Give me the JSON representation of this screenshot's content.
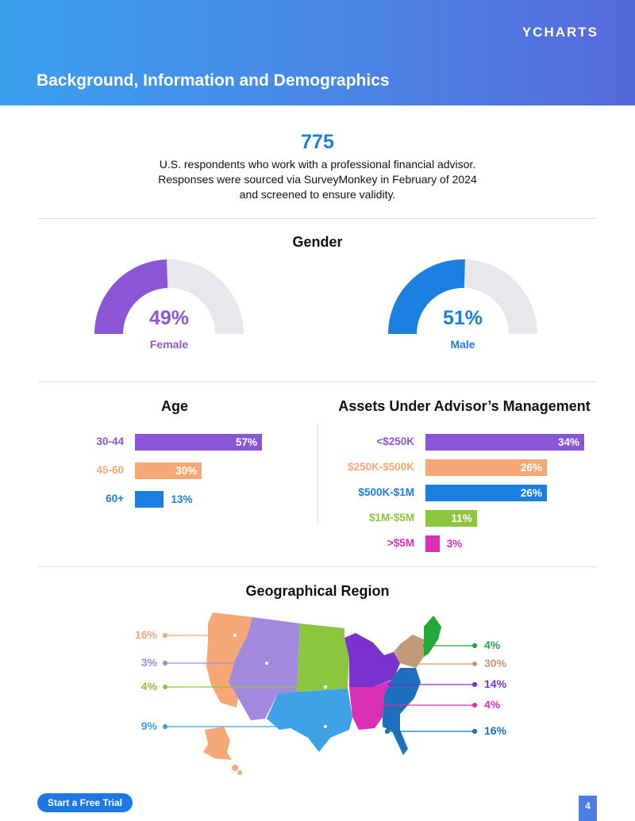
{
  "header": {
    "brand": "YCHARTS",
    "title": "Background, Information and Demographics"
  },
  "intro": {
    "count": "775",
    "lines": [
      "U.S. respondents who work with a professional financial advisor.",
      "Responses were sourced via SurveyMonkey in February of 2024",
      "and screened to ensure validity."
    ]
  },
  "colors": {
    "purple": "#8a56d6",
    "orange": "#f7a877",
    "blue": "#1b7fe0",
    "green": "#8cc63f",
    "magenta": "#d92fb4",
    "gauge_track": "#e8e8ec"
  },
  "cta_label": "Start a Free Trial",
  "page_number": "4",
  "chart_data": [
    {
      "type": "gauge",
      "title": "Gender",
      "series": [
        {
          "name": "Female",
          "value": 49,
          "label": "49%",
          "color": "#8a56d6"
        },
        {
          "name": "Male",
          "value": 51,
          "label": "51%",
          "color": "#1b7fe0"
        }
      ]
    },
    {
      "type": "bar",
      "orientation": "horizontal",
      "title": "Age",
      "categories": [
        "30-44",
        "45-60",
        "60+"
      ],
      "values": [
        57,
        30,
        13
      ],
      "labels": [
        "57%",
        "30%",
        "13%"
      ],
      "colors": [
        "#8a56d6",
        "#f7a877",
        "#1b7fe0"
      ],
      "xlim": [
        0,
        57
      ]
    },
    {
      "type": "bar",
      "orientation": "horizontal",
      "title": "Assets Under Advisor’s Management",
      "categories": [
        "<$250K",
        "$250K-$500K",
        "$500K-$1M",
        "$1M-$5M",
        ">$5M"
      ],
      "values": [
        34,
        26,
        26,
        11,
        3
      ],
      "labels": [
        "34%",
        "26%",
        "26%",
        "11%",
        "3%"
      ],
      "colors": [
        "#8a56d6",
        "#f7a877",
        "#1b7fe0",
        "#8cc63f",
        "#d92fb4"
      ],
      "xlim": [
        0,
        34
      ]
    },
    {
      "type": "map",
      "title": "Geographical Region",
      "regions": [
        {
          "value": 16,
          "label": "16%",
          "color": "#f7a877",
          "side": "left"
        },
        {
          "value": 3,
          "label": "3%",
          "color": "#a389de",
          "side": "left"
        },
        {
          "value": 4,
          "label": "4%",
          "color": "#8cc63f",
          "side": "left"
        },
        {
          "value": 9,
          "label": "9%",
          "color": "#3fa2e6",
          "side": "left"
        },
        {
          "value": 4,
          "label": "4%",
          "color": "#22a83b",
          "side": "right"
        },
        {
          "value": 30,
          "label": "30%",
          "color": "#c29a7a",
          "side": "right"
        },
        {
          "value": 14,
          "label": "14%",
          "color": "#7a32cc",
          "side": "right"
        },
        {
          "value": 4,
          "label": "4%",
          "color": "#d92fb4",
          "side": "right"
        },
        {
          "value": 16,
          "label": "16%",
          "color": "#1f6fbf",
          "side": "right"
        }
      ]
    }
  ]
}
